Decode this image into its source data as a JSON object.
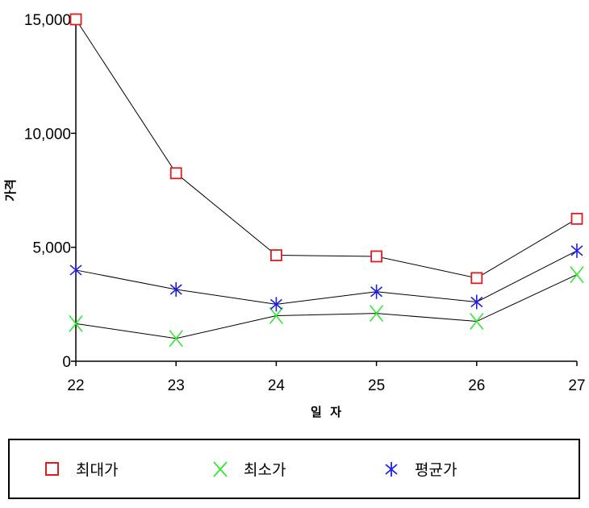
{
  "chart_data": {
    "type": "line",
    "title": "",
    "xlabel": "일  자",
    "ylabel": "가격",
    "categories": [
      "22",
      "23",
      "24",
      "25",
      "26",
      "27"
    ],
    "ylim": [
      0,
      15000
    ],
    "yticks": [
      0,
      5000,
      10000,
      15000
    ],
    "ytick_labels": [
      "0",
      "5,000",
      "10,000",
      "15,000"
    ],
    "grid": false,
    "legend_position": "bottom",
    "series": [
      {
        "name": "최대가",
        "marker": "square",
        "color": "#e31a1c",
        "values": [
          15000,
          8250,
          4650,
          4600,
          3650,
          6250
        ]
      },
      {
        "name": "최소가",
        "marker": "x",
        "color": "#33e833",
        "values": [
          1650,
          1000,
          2000,
          2100,
          1750,
          3800
        ]
      },
      {
        "name": "평균가",
        "marker": "asterisk",
        "color": "#1f1fe0",
        "values": [
          4000,
          3150,
          2500,
          3050,
          2600,
          4850
        ]
      }
    ]
  }
}
